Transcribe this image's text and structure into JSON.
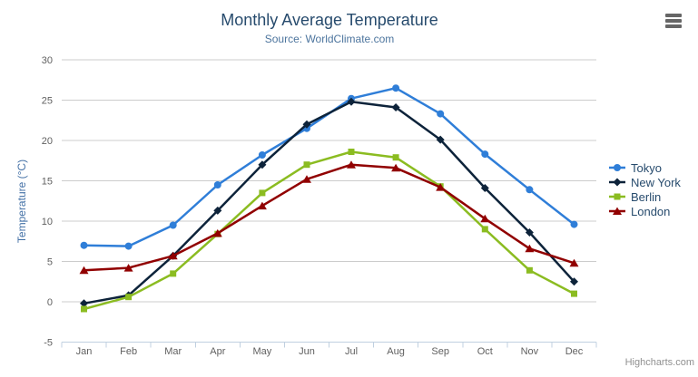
{
  "credit": {
    "label": "Highcharts.com"
  },
  "export_menu": {
    "icon": "hamburger-icon"
  },
  "chart_data": {
    "type": "line",
    "title": "Monthly Average Temperature",
    "subtitle": "Source: WorldClimate.com",
    "categories": [
      "Jan",
      "Feb",
      "Mar",
      "Apr",
      "May",
      "Jun",
      "Jul",
      "Aug",
      "Sep",
      "Oct",
      "Nov",
      "Dec"
    ],
    "xlabel": "",
    "ylabel": "Temperature (°C)",
    "ylim": [
      -5,
      30
    ],
    "ytick_interval": 5,
    "grid": true,
    "legend_position": "right",
    "series": [
      {
        "name": "Tokyo",
        "color": "#2f7ed8",
        "marker": "circle",
        "values": [
          7.0,
          6.9,
          9.5,
          14.5,
          18.2,
          21.5,
          25.2,
          26.5,
          23.3,
          18.3,
          13.9,
          9.6
        ]
      },
      {
        "name": "New York",
        "color": "#0d233a",
        "marker": "diamond",
        "values": [
          -0.2,
          0.8,
          5.7,
          11.3,
          17.0,
          22.0,
          24.8,
          24.1,
          20.1,
          14.1,
          8.6,
          2.5
        ]
      },
      {
        "name": "Berlin",
        "color": "#8bbc21",
        "marker": "square",
        "values": [
          -0.9,
          0.6,
          3.5,
          8.4,
          13.5,
          17.0,
          18.6,
          17.9,
          14.3,
          9.0,
          3.9,
          1.0
        ]
      },
      {
        "name": "London",
        "color": "#910000",
        "marker": "triangle",
        "values": [
          3.9,
          4.2,
          5.7,
          8.5,
          11.9,
          15.2,
          17.0,
          16.6,
          14.2,
          10.3,
          6.6,
          4.8
        ]
      }
    ],
    "colors": {
      "title": "#274b6d",
      "subtitle": "#4d759e",
      "axis_title": "#4572a7",
      "tick_label": "#606060",
      "grid_line": "#cccccc",
      "axis_line": "#c0d0e0",
      "legend_text": "#274b6d",
      "credit": "#909090"
    }
  }
}
